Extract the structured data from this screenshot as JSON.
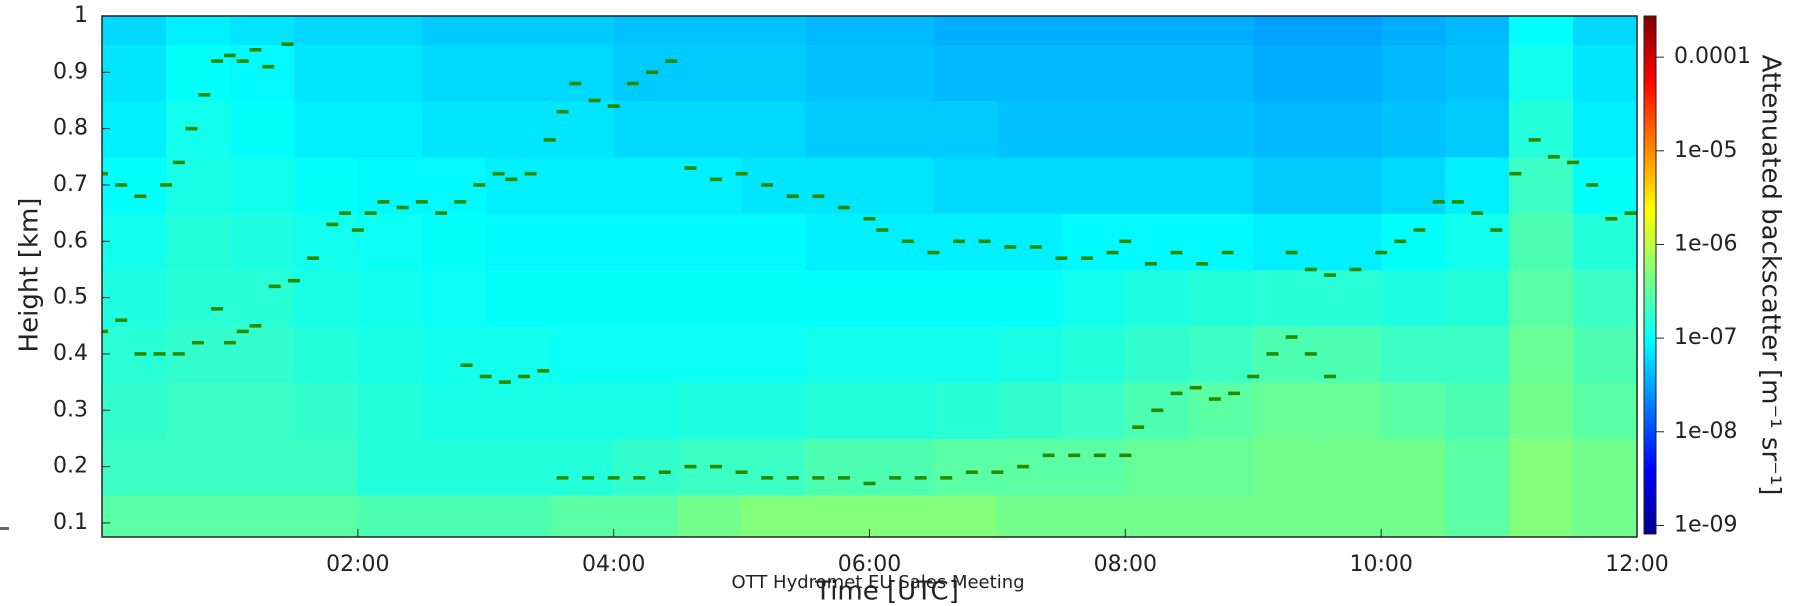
{
  "chart_data": {
    "type": "heatmap",
    "xlabel": "Time [UTC]",
    "ylabel": "Height [km]",
    "colorbar_label": "Attenuated backscatter [m⁻¹ sr⁻¹]",
    "footer": "OTT Hydromet EU Sales Meeting",
    "xlim": [
      0,
      12
    ],
    "ylim": [
      0.075,
      1
    ],
    "xticks": [
      {
        "value": 2,
        "label": "02:00"
      },
      {
        "value": 4,
        "label": "04:00"
      },
      {
        "value": 6,
        "label": "06:00"
      },
      {
        "value": 8,
        "label": "08:00"
      },
      {
        "value": 10,
        "label": "10:00"
      },
      {
        "value": 12,
        "label": "12:00"
      }
    ],
    "yticks": [
      0.1,
      0.2,
      0.3,
      0.4,
      0.5,
      0.6,
      0.7,
      0.8,
      0.9,
      1
    ],
    "colorscale": "jet",
    "color_log": true,
    "clim": [
      8.1e-10,
      0.000275
    ],
    "cticks": [
      {
        "value": 1e-09,
        "label": "1e-09"
      },
      {
        "value": 1e-08,
        "label": "1e-08"
      },
      {
        "value": 1e-07,
        "label": "1e-07"
      },
      {
        "value": 1e-06,
        "label": "1e-06"
      },
      {
        "value": 1e-05,
        "label": "1e-05"
      },
      0.0001
    ],
    "x": [
      0.25,
      0.75,
      1.25,
      1.75,
      2.25,
      2.75,
      3.25,
      3.75,
      4.25,
      4.75,
      5.25,
      5.75,
      6.25,
      6.75,
      7.25,
      7.75,
      8.25,
      8.75,
      9.25,
      9.75,
      10.25,
      10.75,
      11.25,
      11.75
    ],
    "y": [
      0.1,
      0.2,
      0.3,
      0.4,
      0.5,
      0.6,
      0.7,
      0.8,
      0.9,
      1
    ],
    "z": [
      [
        3e-07,
        3e-07,
        3e-07,
        3e-07,
        2.5e-07,
        2.5e-07,
        2.5e-07,
        3e-07,
        3e-07,
        4e-07,
        5e-07,
        5e-07,
        5e-07,
        5e-07,
        4e-07,
        4e-07,
        4e-07,
        4e-07,
        4e-07,
        4e-07,
        4e-07,
        3e-07,
        5e-07,
        4e-07
      ],
      [
        2e-07,
        2e-07,
        2e-07,
        2e-07,
        1.5e-07,
        1.5e-07,
        1.5e-07,
        1.5e-07,
        1.8e-07,
        2e-07,
        2e-07,
        2.5e-07,
        2.5e-07,
        3e-07,
        3e-07,
        3e-07,
        3.5e-07,
        3.5e-07,
        4e-07,
        4e-07,
        4e-07,
        3e-07,
        5e-07,
        4e-07
      ],
      [
        1.8e-07,
        2e-07,
        2e-07,
        1.8e-07,
        1.5e-07,
        1.3e-07,
        1.3e-07,
        1.3e-07,
        1.3e-07,
        1.4e-07,
        1.4e-07,
        1.5e-07,
        1.5e-07,
        1.6e-07,
        1.8e-07,
        2e-07,
        2.5e-07,
        3e-07,
        3.5e-07,
        3.5e-07,
        3e-07,
        2.5e-07,
        4e-07,
        3e-07
      ],
      [
        1.6e-07,
        1.8e-07,
        1.8e-07,
        1.5e-07,
        1.3e-07,
        1.2e-07,
        1.2e-07,
        1.1e-07,
        1.1e-07,
        1.1e-07,
        1.1e-07,
        1.2e-07,
        1.2e-07,
        1.2e-07,
        1.3e-07,
        1.5e-07,
        1.8e-07,
        2e-07,
        2.5e-07,
        2.5e-07,
        2e-07,
        2e-07,
        3.5e-07,
        2.5e-07
      ],
      [
        1.4e-07,
        1.6e-07,
        1.6e-07,
        1.3e-07,
        1.2e-07,
        1.1e-07,
        1e-07,
        1e-07,
        1e-07,
        1e-07,
        1e-07,
        1e-07,
        1e-07,
        1e-07,
        1e-07,
        1.2e-07,
        1.4e-07,
        1.5e-07,
        1.6e-07,
        1.6e-07,
        1.4e-07,
        1.5e-07,
        3e-07,
        2e-07
      ],
      [
        1.2e-07,
        1.5e-07,
        1.4e-07,
        1.2e-07,
        1.1e-07,
        1e-07,
        9e-08,
        9e-08,
        9e-08,
        9e-08,
        9e-08,
        8e-08,
        8e-08,
        8e-08,
        8e-08,
        9e-08,
        9e-08,
        9e-08,
        8e-08,
        8e-08,
        1e-07,
        1.2e-07,
        2.5e-07,
        1.5e-07
      ],
      [
        1e-07,
        1.3e-07,
        1.2e-07,
        1e-07,
        9e-08,
        9e-08,
        8e-08,
        8e-08,
        8e-08,
        8e-08,
        7e-08,
        7e-08,
        7e-08,
        6e-08,
        6e-08,
        6e-08,
        6e-08,
        6e-08,
        5e-08,
        5e-08,
        6e-08,
        8e-08,
        2e-07,
        1e-07
      ],
      [
        8e-08,
        1.2e-07,
        1e-07,
        8e-08,
        8e-08,
        7e-08,
        7e-08,
        7e-08,
        6e-08,
        6e-08,
        6e-08,
        5e-08,
        5e-08,
        5e-08,
        4.5e-08,
        4.5e-08,
        4.5e-08,
        4.5e-08,
        4e-08,
        4e-08,
        4.5e-08,
        5e-08,
        1.5e-07,
        8e-08
      ],
      [
        7e-08,
        1e-07,
        9e-08,
        7e-08,
        7e-08,
        6e-08,
        6e-08,
        6e-08,
        5e-08,
        5e-08,
        5e-08,
        4.5e-08,
        4.5e-08,
        4e-08,
        4e-08,
        4e-08,
        4e-08,
        4e-08,
        3.5e-08,
        3.5e-08,
        4e-08,
        4.5e-08,
        1.2e-07,
        7e-08
      ],
      [
        6e-08,
        8e-08,
        7e-08,
        6e-08,
        6e-08,
        5e-08,
        5e-08,
        5e-08,
        4.5e-08,
        4.5e-08,
        4.5e-08,
        4e-08,
        4e-08,
        3.5e-08,
        3.5e-08,
        3.5e-08,
        3.5e-08,
        3.5e-08,
        3e-08,
        3e-08,
        3.5e-08,
        4e-08,
        1e-07,
        6e-08
      ]
    ],
    "series": [
      {
        "color": "#2a8a00",
        "x": [
          0.0,
          0.15,
          0.3,
          0.5,
          0.6,
          0.7,
          0.8,
          0.9,
          1.0,
          1.1,
          1.2,
          1.3,
          1.45,
          1.5,
          1.65,
          1.8,
          1.9,
          2.0,
          2.1,
          2.2,
          2.35,
          2.5,
          2.65,
          2.8,
          2.95,
          3.1,
          3.2,
          3.35,
          3.5,
          3.6,
          3.7,
          3.85,
          4.0,
          4.15,
          4.3,
          4.45,
          4.6,
          4.8,
          5.0,
          5.2,
          5.4,
          5.6,
          5.8,
          6.0,
          6.1,
          6.3,
          6.5,
          6.7,
          6.9,
          7.1,
          7.3,
          7.5,
          7.7,
          7.9,
          8.0,
          8.2,
          8.4,
          8.6,
          8.8,
          9.3,
          9.45,
          9.6,
          9.8,
          10.0,
          10.15,
          10.3,
          10.45,
          10.6,
          10.75,
          10.9,
          11.05,
          11.2,
          11.35,
          11.5,
          11.65,
          11.8,
          11.95
        ],
        "values": [
          0.72,
          0.7,
          0.68,
          0.7,
          0.74,
          0.8,
          0.86,
          0.92,
          0.93,
          0.92,
          0.94,
          0.91,
          0.95,
          0.53,
          0.57,
          0.63,
          0.65,
          0.62,
          0.65,
          0.67,
          0.66,
          0.67,
          0.65,
          0.67,
          0.7,
          0.72,
          0.71,
          0.72,
          0.78,
          0.83,
          0.88,
          0.85,
          0.84,
          0.88,
          0.9,
          0.92,
          0.73,
          0.71,
          0.72,
          0.7,
          0.68,
          0.68,
          0.66,
          0.64,
          0.62,
          0.6,
          0.58,
          0.6,
          0.6,
          0.59,
          0.59,
          0.57,
          0.57,
          0.58,
          0.6,
          0.56,
          0.58,
          0.56,
          0.58,
          0.58,
          0.55,
          0.54,
          0.55,
          0.58,
          0.6,
          0.62,
          0.67,
          0.67,
          0.65,
          0.62,
          0.72,
          0.78,
          0.75,
          0.74,
          0.7,
          0.64,
          0.65
        ]
      },
      {
        "color": "#2a8a00",
        "x": [
          0.0,
          0.15,
          0.3,
          0.45,
          0.6,
          0.75,
          0.9,
          1.0,
          1.1,
          1.2,
          1.35,
          2.85,
          3.0,
          3.15,
          3.3,
          3.45,
          3.6,
          3.8,
          4.0,
          4.2,
          4.4,
          4.6,
          4.8,
          5.0,
          5.2,
          5.4,
          5.6,
          5.8,
          6.0,
          6.2,
          6.4,
          6.6,
          6.8,
          7.0,
          7.2,
          7.4,
          7.6,
          7.8,
          8.0,
          8.1,
          8.25,
          8.4,
          8.55,
          8.7,
          8.85,
          9.0,
          9.15,
          9.3,
          9.45,
          9.6
        ],
        "values": [
          0.44,
          0.46,
          0.4,
          0.4,
          0.4,
          0.42,
          0.48,
          0.42,
          0.44,
          0.45,
          0.52,
          0.38,
          0.36,
          0.35,
          0.36,
          0.37,
          0.18,
          0.18,
          0.18,
          0.18,
          0.19,
          0.2,
          0.2,
          0.19,
          0.18,
          0.18,
          0.18,
          0.18,
          0.17,
          0.18,
          0.18,
          0.18,
          0.19,
          0.19,
          0.2,
          0.22,
          0.22,
          0.22,
          0.22,
          0.27,
          0.3,
          0.33,
          0.34,
          0.32,
          0.33,
          0.36,
          0.4,
          0.43,
          0.4,
          0.36
        ]
      }
    ]
  }
}
